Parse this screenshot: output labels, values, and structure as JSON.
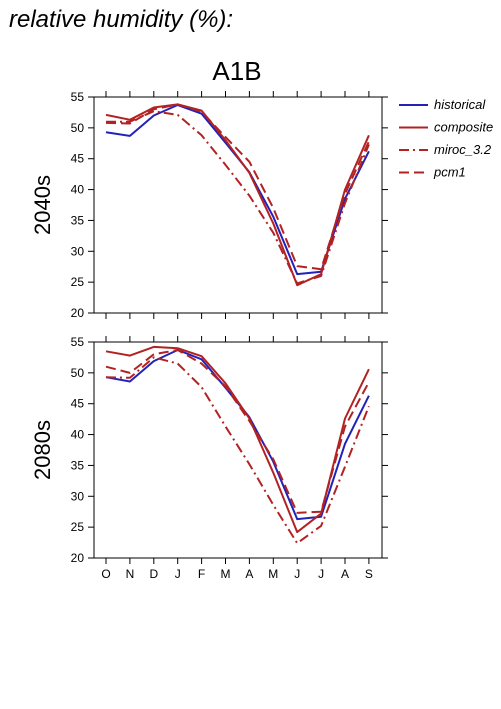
{
  "page_title": "relative humidity (%):",
  "scenario": "A1B",
  "legend": [
    {
      "name": "historical",
      "color": "#2222bb",
      "style": "solid"
    },
    {
      "name": "composite",
      "color": "#b22222",
      "style": "solid"
    },
    {
      "name": "miroc_3.2",
      "color": "#b22222",
      "style": "dashdot"
    },
    {
      "name": "pcm1",
      "color": "#b22222",
      "style": "dashed"
    }
  ],
  "chart_data": [
    {
      "type": "line",
      "title": "2040s",
      "categories": [
        "O",
        "N",
        "D",
        "J",
        "F",
        "M",
        "A",
        "M",
        "J",
        "J",
        "A",
        "S"
      ],
      "ylim": [
        20,
        55
      ],
      "yticks": [
        20,
        25,
        30,
        35,
        40,
        45,
        50,
        55
      ],
      "series": [
        {
          "name": "historical",
          "values": [
            49.3,
            48.7,
            52.0,
            53.7,
            52.3,
            47.6,
            42.8,
            35.6,
            26.3,
            26.7,
            38.5,
            46.2
          ]
        },
        {
          "name": "composite",
          "values": [
            52.1,
            51.3,
            53.3,
            53.8,
            52.8,
            48.0,
            42.7,
            34.5,
            24.5,
            26.3,
            40.0,
            48.8
          ]
        },
        {
          "name": "miroc_3.2",
          "values": [
            51.0,
            51.0,
            52.7,
            52.1,
            48.8,
            44.0,
            39.0,
            33.0,
            24.8,
            26.0,
            37.8,
            47.3
          ]
        },
        {
          "name": "pcm1",
          "values": [
            50.8,
            50.7,
            53.0,
            53.8,
            52.6,
            48.5,
            44.5,
            37.0,
            27.6,
            27.1,
            39.3,
            47.8
          ]
        }
      ]
    },
    {
      "type": "line",
      "title": "2080s",
      "categories": [
        "O",
        "N",
        "D",
        "J",
        "F",
        "M",
        "A",
        "M",
        "J",
        "J",
        "A",
        "S"
      ],
      "ylim": [
        20,
        55
      ],
      "yticks": [
        20,
        25,
        30,
        35,
        40,
        45,
        50,
        55
      ],
      "series": [
        {
          "name": "historical",
          "values": [
            49.3,
            48.6,
            51.9,
            53.7,
            52.2,
            47.6,
            42.8,
            35.6,
            26.3,
            26.7,
            38.5,
            46.3
          ]
        },
        {
          "name": "composite",
          "values": [
            53.5,
            52.8,
            54.2,
            54.0,
            52.7,
            48.3,
            42.6,
            33.8,
            24.2,
            27.2,
            42.6,
            50.6
          ]
        },
        {
          "name": "miroc_3.2",
          "values": [
            49.3,
            49.2,
            52.5,
            51.5,
            47.7,
            41.3,
            35.2,
            28.6,
            22.4,
            25.2,
            34.8,
            44.6
          ]
        },
        {
          "name": "pcm1",
          "values": [
            51.0,
            50.0,
            53.0,
            53.7,
            51.5,
            47.8,
            42.2,
            36.0,
            27.3,
            27.5,
            41.3,
            48.5
          ]
        }
      ]
    }
  ]
}
